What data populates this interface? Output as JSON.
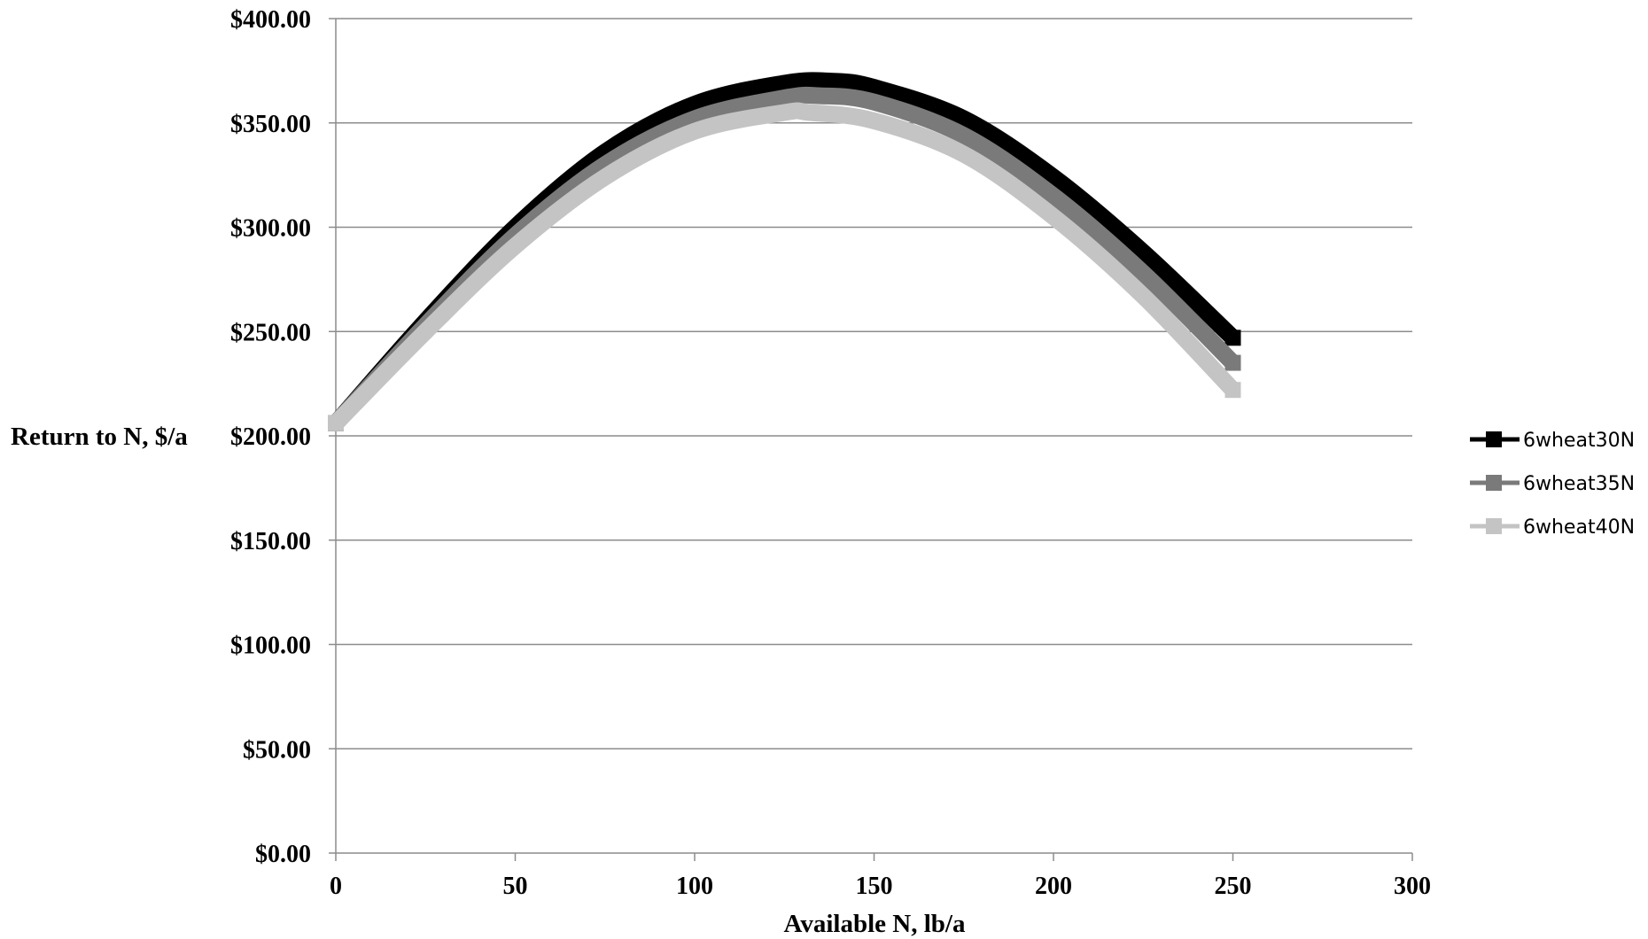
{
  "chart_data": {
    "type": "line",
    "xlabel": "Available N, lb/a",
    "ylabel": "Return to N, $/a",
    "xlim": [
      0,
      300
    ],
    "ylim": [
      0,
      400
    ],
    "x_ticks": [
      0,
      50,
      100,
      150,
      200,
      250,
      300
    ],
    "x_tick_labels": [
      "0",
      "50",
      "100",
      "150",
      "200",
      "250",
      "300"
    ],
    "y_ticks": [
      0,
      50,
      100,
      150,
      200,
      250,
      300,
      350,
      400
    ],
    "y_tick_labels": [
      "$0.00",
      "$50.00",
      "$100.00",
      "$150.00",
      "$200.00",
      "$250.00",
      "$300.00",
      "$350.00",
      "$400.00"
    ],
    "grid": "horizontal",
    "legend_position": "right",
    "series": [
      {
        "name": "6wheat30N",
        "color": "#000000",
        "x": [
          0,
          25,
          50,
          75,
          100,
          125,
          138,
          150,
          175,
          200,
          225,
          250
        ],
        "y": [
          206,
          255,
          300,
          336,
          359,
          369,
          370,
          367,
          352,
          324,
          288,
          247
        ]
      },
      {
        "name": "6wheat35N",
        "color": "#7a7a7a",
        "x": [
          0,
          25,
          50,
          75,
          100,
          125,
          135,
          150,
          175,
          200,
          225,
          250
        ],
        "y": [
          206,
          253,
          296,
          330,
          352,
          362,
          363,
          360,
          344,
          315,
          278,
          235
        ]
      },
      {
        "name": "6wheat40N",
        "color": "#c4c4c4",
        "x": [
          0,
          25,
          50,
          75,
          100,
          125,
          132,
          150,
          175,
          200,
          225,
          250
        ],
        "y": [
          206,
          250,
          291,
          324,
          346,
          355,
          355,
          351,
          335,
          305,
          267,
          222
        ]
      }
    ]
  }
}
